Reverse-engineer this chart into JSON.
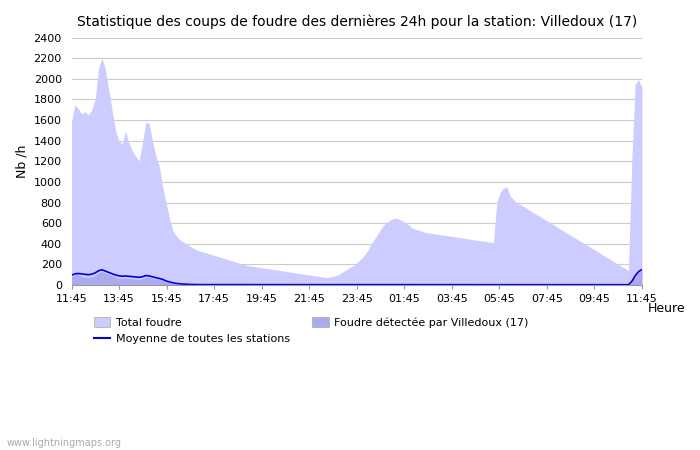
{
  "title": "Statistique des coups de foudre des dernières 24h pour la station: Villedoux (17)",
  "xlabel": "Heure",
  "ylabel": "Nb /h",
  "watermark": "www.lightningmaps.org",
  "x_labels": [
    "11:45",
    "13:45",
    "15:45",
    "17:45",
    "19:45",
    "21:45",
    "23:45",
    "01:45",
    "03:45",
    "05:45",
    "07:45",
    "09:45",
    "11:45"
  ],
  "ylim": [
    0,
    2400
  ],
  "yticks": [
    0,
    200,
    400,
    600,
    800,
    1000,
    1200,
    1400,
    1600,
    1800,
    2000,
    2200,
    2400
  ],
  "total_foudre_color": "#ccccff",
  "villedoux_color": "#aaaaee",
  "moyenne_color": "#0000dd",
  "background_color": "#ffffff",
  "grid_color": "#cccccc",
  "total_foudre": [
    1580,
    1750,
    1710,
    1660,
    1680,
    1650,
    1700,
    1800,
    2100,
    2200,
    2100,
    1900,
    1700,
    1500,
    1400,
    1370,
    1490,
    1380,
    1300,
    1250,
    1200,
    1380,
    1580,
    1570,
    1390,
    1250,
    1150,
    950,
    800,
    650,
    530,
    480,
    440,
    420,
    400,
    380,
    360,
    340,
    330,
    320,
    310,
    300,
    290,
    280,
    270,
    260,
    250,
    240,
    230,
    220,
    210,
    200,
    190,
    185,
    180,
    175,
    170,
    165,
    160,
    155,
    150,
    145,
    140,
    135,
    130,
    125,
    120,
    115,
    110,
    105,
    100,
    95,
    90,
    85,
    80,
    75,
    75,
    80,
    90,
    100,
    120,
    140,
    160,
    180,
    200,
    230,
    260,
    300,
    350,
    410,
    460,
    510,
    560,
    600,
    620,
    640,
    650,
    640,
    625,
    600,
    580,
    550,
    540,
    530,
    520,
    510,
    505,
    500,
    495,
    490,
    485,
    480,
    475,
    470,
    465,
    460,
    455,
    450,
    445,
    440,
    435,
    430,
    425,
    420,
    415,
    410,
    800,
    900,
    940,
    950,
    860,
    830,
    790,
    780,
    760,
    740,
    720,
    700,
    680,
    660,
    640,
    620,
    600,
    580,
    560,
    540,
    520,
    500,
    480,
    460,
    440,
    420,
    400,
    380,
    360,
    340,
    320,
    300,
    280,
    260,
    240,
    220,
    200,
    180,
    160,
    140,
    1220,
    1950,
    1990,
    1920
  ],
  "villedoux": [
    80,
    100,
    100,
    80,
    75,
    72,
    78,
    95,
    120,
    130,
    118,
    105,
    88,
    75,
    68,
    65,
    70,
    65,
    60,
    58,
    55,
    60,
    75,
    72,
    65,
    58,
    52,
    42,
    30,
    22,
    15,
    10,
    8,
    5,
    3,
    2,
    2,
    2,
    2,
    2,
    2,
    2,
    2,
    2,
    2,
    2,
    2,
    2,
    2,
    2,
    2,
    2,
    2,
    2,
    2,
    2,
    2,
    2,
    2,
    2,
    2,
    2,
    2,
    2,
    2,
    2,
    2,
    2,
    2,
    2,
    2,
    2,
    2,
    2,
    2,
    2,
    2,
    2,
    2,
    2,
    2,
    2,
    2,
    2,
    2,
    2,
    2,
    2,
    2,
    2,
    2,
    2,
    2,
    2,
    2,
    2,
    2,
    2,
    2,
    2,
    2,
    2,
    2,
    2,
    2,
    2,
    2,
    2,
    2,
    2,
    2,
    2,
    2,
    2,
    2,
    2,
    2,
    2,
    2,
    2,
    2,
    2,
    2,
    2,
    2,
    2,
    2,
    2,
    2,
    2,
    2,
    2,
    2,
    2,
    2,
    2,
    2,
    2,
    2,
    2,
    2,
    2,
    2,
    2,
    2,
    2,
    2,
    2,
    2,
    2,
    2,
    2,
    2,
    2,
    2,
    2,
    2,
    2,
    2,
    2,
    2,
    2,
    2,
    2,
    2,
    2,
    30,
    80,
    120,
    140
  ],
  "moyenne": [
    95,
    108,
    112,
    108,
    104,
    100,
    105,
    118,
    138,
    148,
    135,
    122,
    110,
    98,
    90,
    85,
    88,
    85,
    82,
    78,
    75,
    80,
    92,
    88,
    80,
    72,
    65,
    55,
    40,
    30,
    22,
    16,
    12,
    9,
    7,
    6,
    5,
    5,
    4,
    4,
    4,
    4,
    3,
    3,
    3,
    3,
    3,
    3,
    3,
    3,
    3,
    3,
    3,
    3,
    3,
    3,
    3,
    3,
    3,
    3,
    3,
    3,
    3,
    3,
    3,
    3,
    3,
    3,
    3,
    3,
    3,
    3,
    3,
    3,
    3,
    3,
    3,
    3,
    3,
    3,
    3,
    3,
    3,
    3,
    3,
    3,
    3,
    3,
    3,
    3,
    3,
    3,
    3,
    3,
    3,
    3,
    3,
    3,
    3,
    3,
    3,
    3,
    3,
    3,
    3,
    3,
    3,
    3,
    3,
    3,
    3,
    3,
    3,
    3,
    3,
    3,
    3,
    3,
    3,
    3,
    3,
    3,
    3,
    3,
    3,
    3,
    3,
    3,
    3,
    3,
    3,
    3,
    3,
    3,
    3,
    3,
    3,
    3,
    3,
    3,
    3,
    3,
    3,
    3,
    3,
    3,
    3,
    3,
    3,
    3,
    3,
    3,
    3,
    3,
    3,
    3,
    3,
    3,
    3,
    3,
    3,
    3,
    3,
    3,
    3,
    3,
    35,
    90,
    130,
    150
  ]
}
